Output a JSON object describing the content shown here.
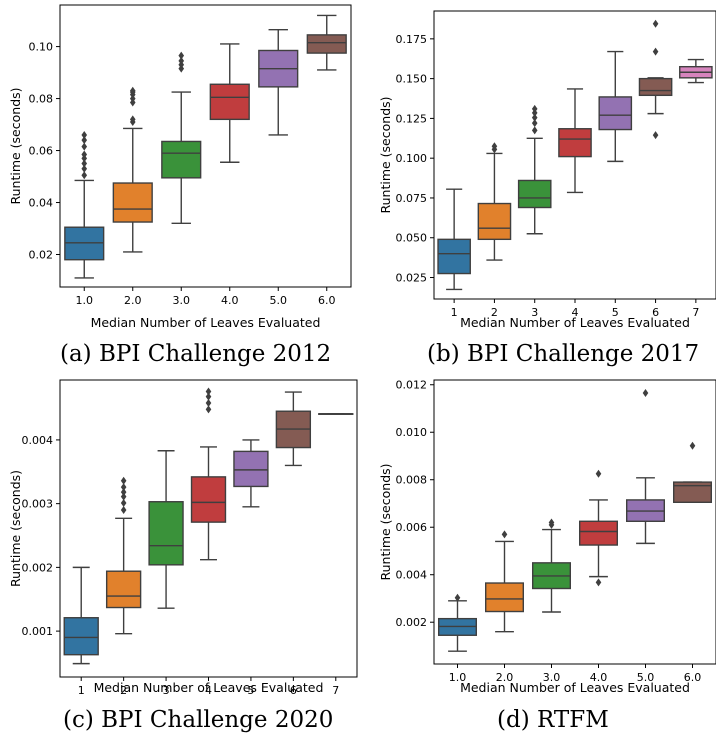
{
  "palette": [
    "#3274a1",
    "#e1812c",
    "#3a923a",
    "#c03d3e",
    "#9372b2",
    "#845b53",
    "#d684bd"
  ],
  "captions": [
    "(a) BPI Challenge 2012",
    "(b) BPI Challenge 2017",
    "(c) BPI Challenge 2020",
    "(d) RTFM"
  ],
  "chart_data": [
    {
      "type": "box",
      "xlabel": "Median Number of Leaves Evaluated",
      "ylabel": "Runtime (seconds)",
      "ylim": [
        0.0075,
        0.116
      ],
      "yticks": [
        0.02,
        0.04,
        0.06,
        0.08,
        0.1
      ],
      "ytick_labels": [
        "0.02",
        "0.04",
        "0.06",
        "0.08",
        "0.10"
      ],
      "categories": [
        "1.0",
        "2.0",
        "3.0",
        "4.0",
        "5.0",
        "6.0"
      ],
      "boxes": [
        {
          "whislo": 0.011,
          "q1": 0.018,
          "med": 0.0245,
          "q3": 0.0305,
          "whishi": 0.0485,
          "fliers": [
            0.0505,
            0.053,
            0.055,
            0.057,
            0.0585,
            0.0615,
            0.064,
            0.066
          ]
        },
        {
          "whislo": 0.021,
          "q1": 0.0325,
          "med": 0.0375,
          "q3": 0.0475,
          "whishi": 0.0685,
          "fliers": [
            0.071,
            0.072,
            0.0785,
            0.08,
            0.0815,
            0.0825,
            0.083
          ]
        },
        {
          "whislo": 0.032,
          "q1": 0.0495,
          "med": 0.059,
          "q3": 0.0635,
          "whishi": 0.0825,
          "fliers": [
            0.0915,
            0.093,
            0.0945,
            0.0965
          ]
        },
        {
          "whislo": 0.0555,
          "q1": 0.072,
          "med": 0.0805,
          "q3": 0.0855,
          "whishi": 0.101,
          "fliers": []
        },
        {
          "whislo": 0.066,
          "q1": 0.0845,
          "med": 0.0915,
          "q3": 0.0985,
          "whishi": 0.1065,
          "fliers": []
        },
        {
          "whislo": 0.091,
          "q1": 0.0975,
          "med": 0.1015,
          "q3": 0.1045,
          "whishi": 0.112,
          "fliers": []
        }
      ]
    },
    {
      "type": "box",
      "xlabel": "Median Number of Leaves Evaluated",
      "ylabel": "Runtime (seconds)",
      "ylim": [
        0.0115,
        0.1925
      ],
      "yticks": [
        0.025,
        0.05,
        0.075,
        0.1,
        0.125,
        0.15,
        0.175
      ],
      "ytick_labels": [
        "0.025",
        "0.050",
        "0.075",
        "0.100",
        "0.125",
        "0.150",
        "0.175"
      ],
      "categories": [
        "1",
        "2",
        "3",
        "4",
        "5",
        "6",
        "7"
      ],
      "boxes": [
        {
          "whislo": 0.0175,
          "q1": 0.0275,
          "med": 0.04,
          "q3": 0.049,
          "whishi": 0.0805,
          "fliers": []
        },
        {
          "whislo": 0.036,
          "q1": 0.049,
          "med": 0.056,
          "q3": 0.0715,
          "whishi": 0.103,
          "fliers": [
            0.1055,
            0.1075
          ]
        },
        {
          "whislo": 0.0525,
          "q1": 0.069,
          "med": 0.075,
          "q3": 0.086,
          "whishi": 0.1125,
          "fliers": [
            0.1175,
            0.122,
            0.1255,
            0.1285,
            0.131
          ]
        },
        {
          "whislo": 0.0785,
          "q1": 0.101,
          "med": 0.112,
          "q3": 0.1185,
          "whishi": 0.1435,
          "fliers": []
        },
        {
          "whislo": 0.098,
          "q1": 0.118,
          "med": 0.127,
          "q3": 0.1385,
          "whishi": 0.167,
          "fliers": []
        },
        {
          "whislo": 0.128,
          "q1": 0.1395,
          "med": 0.1425,
          "q3": 0.15,
          "whishi": 0.1505,
          "fliers": [
            0.1145,
            0.167,
            0.1845
          ]
        },
        {
          "whislo": 0.1475,
          "q1": 0.1505,
          "med": 0.154,
          "q3": 0.1575,
          "whishi": 0.162,
          "fliers": []
        }
      ]
    },
    {
      "type": "box",
      "xlabel": "Median Number of Leaves Evaluated",
      "ylabel": "Runtime (seconds)",
      "ylim": [
        0.00028,
        0.00494
      ],
      "yticks": [
        0.001,
        0.002,
        0.003,
        0.004
      ],
      "ytick_labels": [
        "0.001",
        "0.002",
        "0.003",
        "0.004"
      ],
      "categories": [
        "1",
        "2",
        "3",
        "4",
        "5",
        "6",
        "7"
      ],
      "boxes": [
        {
          "whislo": 0.00049,
          "q1": 0.00063,
          "med": 0.0009,
          "q3": 0.00121,
          "whishi": 0.002,
          "fliers": []
        },
        {
          "whislo": 0.00096,
          "q1": 0.00137,
          "med": 0.00155,
          "q3": 0.00194,
          "whishi": 0.00277,
          "fliers": [
            0.0029,
            0.00301,
            0.00311,
            0.00318,
            0.00326,
            0.00336
          ]
        },
        {
          "whislo": 0.00136,
          "q1": 0.00204,
          "med": 0.00234,
          "q3": 0.00303,
          "whishi": 0.00383,
          "fliers": []
        },
        {
          "whislo": 0.00212,
          "q1": 0.00271,
          "med": 0.00302,
          "q3": 0.00342,
          "whishi": 0.00389,
          "fliers": [
            0.00448,
            0.00458,
            0.00468,
            0.00476
          ]
        },
        {
          "whislo": 0.00295,
          "q1": 0.00327,
          "med": 0.00353,
          "q3": 0.00382,
          "whishi": 0.004,
          "fliers": []
        },
        {
          "whislo": 0.0036,
          "q1": 0.00388,
          "med": 0.00417,
          "q3": 0.00445,
          "whishi": 0.00475,
          "fliers": []
        },
        {
          "whislo": 0.00441,
          "q1": 0.00441,
          "med": 0.00441,
          "q3": 0.00441,
          "whishi": 0.00441,
          "fliers": []
        }
      ]
    },
    {
      "type": "box",
      "xlabel": "Median Number of Leaves Evaluated",
      "ylabel": "Runtime (seconds)",
      "ylim": [
        0.00024,
        0.0122
      ],
      "yticks": [
        0.002,
        0.004,
        0.006,
        0.008,
        0.01,
        0.012
      ],
      "ytick_labels": [
        "0.002",
        "0.004",
        "0.006",
        "0.008",
        "0.010",
        "0.012"
      ],
      "categories": [
        "1.0",
        "2.0",
        "3.0",
        "4.0",
        "5.0",
        "6.0"
      ],
      "boxes": [
        {
          "whislo": 0.00078,
          "q1": 0.00145,
          "med": 0.00182,
          "q3": 0.00215,
          "whishi": 0.0029,
          "fliers": [
            0.00303
          ]
        },
        {
          "whislo": 0.0016,
          "q1": 0.00245,
          "med": 0.00298,
          "q3": 0.00365,
          "whishi": 0.0054,
          "fliers": [
            0.0057
          ]
        },
        {
          "whislo": 0.00243,
          "q1": 0.00342,
          "med": 0.00395,
          "q3": 0.0045,
          "whishi": 0.0059,
          "fliers": [
            0.0061,
            0.0062
          ]
        },
        {
          "whislo": 0.00392,
          "q1": 0.00525,
          "med": 0.00582,
          "q3": 0.00625,
          "whishi": 0.00715,
          "fliers": [
            0.00368,
            0.00825
          ]
        },
        {
          "whislo": 0.00532,
          "q1": 0.00625,
          "med": 0.00668,
          "q3": 0.00715,
          "whishi": 0.00808,
          "fliers": [
            0.01165
          ]
        },
        {
          "whislo": 0.00705,
          "q1": 0.00705,
          "med": 0.00775,
          "q3": 0.0079,
          "whishi": 0.0079,
          "fliers": [
            0.00943
          ]
        }
      ]
    }
  ]
}
